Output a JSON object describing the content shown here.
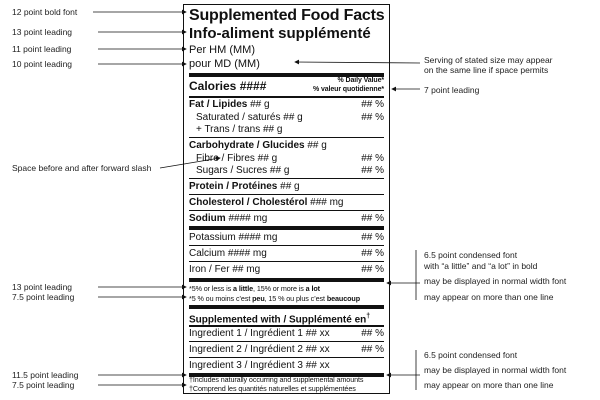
{
  "left_annotations": [
    "12 point bold font",
    "13 point leading",
    "11 point leading",
    "10 point leading",
    "Space before and after forward slash",
    "13 point leading",
    "7.5 point leading",
    "11.5 point leading",
    "7.5 point leading"
  ],
  "right_annotations": {
    "serving_note_1": "Serving of stated size may appear",
    "serving_note_2": "on the same line if space permits",
    "dv_leading": "7 point leading",
    "fn_1": "6.5 point condensed font",
    "fn_2": "with “a little” and “a lot” in bold",
    "fn_3": "may be displayed in normal width font",
    "fn_4": "may appear on more than one line",
    "fn_5": "6.5 point condensed font",
    "fn_6": "may be displayed in normal width font",
    "fn_7": "may appear on more than one line"
  },
  "label": {
    "title_en": "Supplemented Food Facts",
    "title_fr": "Info-aliment supplémenté",
    "per_hm": "Per HM (MM)",
    "pour_md": "pour MD (MM)",
    "calories": "Calories ####",
    "dv_en": "% Daily Value*",
    "dv_fr": "% valeur quotidienne*",
    "rows": [
      {
        "name": "Fat / Lipides",
        "rest": " ## g",
        "value": "## %"
      },
      {
        "name": "Saturated / saturés ## g",
        "rest": "",
        "value": "## %"
      },
      {
        "name": "+ Trans / trans ## g",
        "rest": "",
        "value": ""
      },
      {
        "name": "Carbohydrate / Glucides",
        "rest": " ## g",
        "value": ""
      },
      {
        "name": "Fibre / Fibres ## g",
        "rest": "",
        "value": "## %"
      },
      {
        "name": "Sugars / Sucres ## g",
        "rest": "",
        "value": "## %"
      },
      {
        "name": "Protein / Protéines",
        "rest": " ## g",
        "value": ""
      },
      {
        "name": "Cholesterol / Cholestérol",
        "rest": " ### mg",
        "value": ""
      },
      {
        "name": "Sodium",
        "rest": " #### mg",
        "value": "## %"
      },
      {
        "name": "Potassium #### mg",
        "rest": "",
        "value": "## %"
      },
      {
        "name": "Calcium #### mg",
        "rest": "",
        "value": "## %"
      },
      {
        "name": "Iron / Fer ## mg",
        "rest": "",
        "value": "## %"
      }
    ],
    "fn_en_a": "*5% or less is ",
    "fn_en_b": "a little",
    "fn_en_c": ", 15% or more is ",
    "fn_en_d": "a lot",
    "fn_fr_a": "*5 % ou moins c’est ",
    "fn_fr_b": "peu",
    "fn_fr_c": ", 15 % ou plus c’est ",
    "fn_fr_d": "beaucoup",
    "supp_heading": "Supplemented with / Supplémenté en",
    "dagger": "†",
    "ingredients": [
      {
        "name": "Ingredient 1 / Ingrédient 1 ## xx",
        "value": "## %"
      },
      {
        "name": "Ingredient 2 / Ingrédient 2 ## xx",
        "value": "## %"
      },
      {
        "name": "Ingredient 3 / Ingrédient 3 ## xx",
        "value": ""
      }
    ],
    "foot_en": "†Includes naturally occurring and supplemental amounts",
    "foot_fr": "†Comprend les quantités naturelles et supplémentées"
  }
}
